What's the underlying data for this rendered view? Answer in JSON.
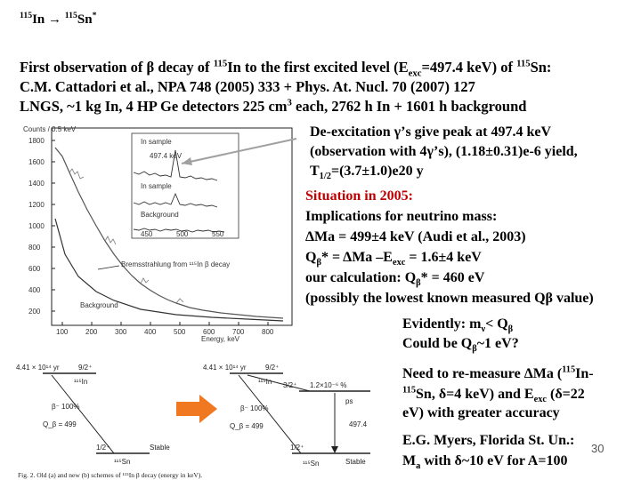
{
  "title": {
    "parent_mass": "115",
    "parent": "In",
    "arrow": " → ",
    "daughter_mass": "115",
    "daughter": "Sn",
    "star": "*"
  },
  "intro": {
    "line1_a": "First observation of ",
    "beta": "β",
    "line1_b": " decay of ",
    "mass1": "115",
    "line1_c": "In to the first excited level (E",
    "exc_sub": "exc",
    "line1_d": "=497.4 keV) of ",
    "mass2": "115",
    "line1_e": "Sn:",
    "line2": "C.M. Cattadori et al., NPA 748 (2005) 333 + Phys. At. Nucl. 70 (2007) 127",
    "line3_a": "LNGS, ~1 kg In, 4 HP Ge detectors 225 cm",
    "cube": "3",
    "line3_b": " each, 2762 h In + 1601 h background"
  },
  "spectrum": {
    "ylabel": "Counts / 0.5 keV",
    "yticks": [
      "1800",
      "1600",
      "1400",
      "1200",
      "1000",
      "800",
      "600",
      "400",
      "200"
    ],
    "xticks": [
      "100",
      "200",
      "300",
      "400",
      "500",
      "600",
      "700",
      "800"
    ],
    "xlabel": "Energy, keV",
    "label_sample": "In sample",
    "label_sample2": "In sample",
    "label_background": "Background",
    "label_background2": "Background",
    "label_bremss": "Bremsstrahlung from ¹¹⁵In β decay",
    "label_peak": "497.4 keV",
    "inset_ticks": [
      "450",
      "500",
      "550"
    ]
  },
  "deexc": {
    "l1": "De-excitation γ’s give peak at 497.4 keV",
    "l2": "(observation with 4γ’s), (1.18±0.31)e-6 yield,",
    "l3_a": "T",
    "l3_sub": "1/2",
    "l3_b": "=(3.7±1.0)e20 y"
  },
  "situation": {
    "head": "Situation in 2005:",
    "l1": "Implications for neutrino mass:",
    "l2": "ΔMa = 499±4 keV (Audi et al., 2003)",
    "l3_a": "Q",
    "l3_sub": "β",
    "l3_b": "* = ΔMa –E",
    "l3_sub2": "exc",
    "l3_c": " = 1.6±4 keV",
    "l4_a": "our calculation: Q",
    "l4_sub": "β",
    "l4_b": "* = 460 eV",
    "l5": "(possibly the lowest known measured Qβ value)"
  },
  "evidently": {
    "l1_a": "Evidently: m",
    "l1_sub": "ν",
    "l1_b": "< Q",
    "l1_sub2": "β",
    "l2_a": "Could be Q",
    "l2_sub": "β",
    "l2_b": "~1 eV?"
  },
  "remeasure": {
    "l1_a": "Need to re-measure ΔMa (",
    "l1_mass": "115",
    "l1_b": "In-",
    "l2_mass": "115",
    "l2_a": "Sn, δ=4 keV) and E",
    "l2_sub": "exc",
    "l2_b": " (δ=22",
    "l3": "eV) with greater accuracy"
  },
  "myers": {
    "l1": "E.G. Myers, Florida St. Un.:",
    "l2_a": "M",
    "l2_sub": "a",
    "l2_b": " with δ~10 eV for A=100"
  },
  "page_number": "30",
  "schemes": {
    "old_halflife": "4.41 × 10¹⁴ yr",
    "old_spin": "9/2⁺",
    "old_parent": "¹¹⁵In",
    "old_branch": "β⁻ 100%",
    "old_q": "Q_β = 499",
    "old_ground": "1/2⁺",
    "old_stable": "Stable",
    "old_daughter": "¹¹⁵Sn",
    "new_halflife": "4.41 × 10¹⁴ yr",
    "new_spin": "9/2⁺",
    "new_parent": "¹¹⁵In",
    "new_branch": "β⁻ 100%",
    "new_q": "Q_β = 499",
    "new_excited_spin": "3/2⁺",
    "new_excited_ratio": "1.2×10⁻⁶ %",
    "new_excited_energy": "497.4",
    "new_excited_ps": "ps",
    "new_ground": "1/2⁺",
    "new_stable": "Stable",
    "new_daughter": "¹¹⁵Sn",
    "caption": "Fig. 2. Old (a) and new (b) schemes of ¹¹⁵In β decay (energy in keV)."
  },
  "colors": {
    "accent_red": "#c00000",
    "arrow_orange": "#f07820",
    "peak_arrow": "#a0a0a0"
  }
}
